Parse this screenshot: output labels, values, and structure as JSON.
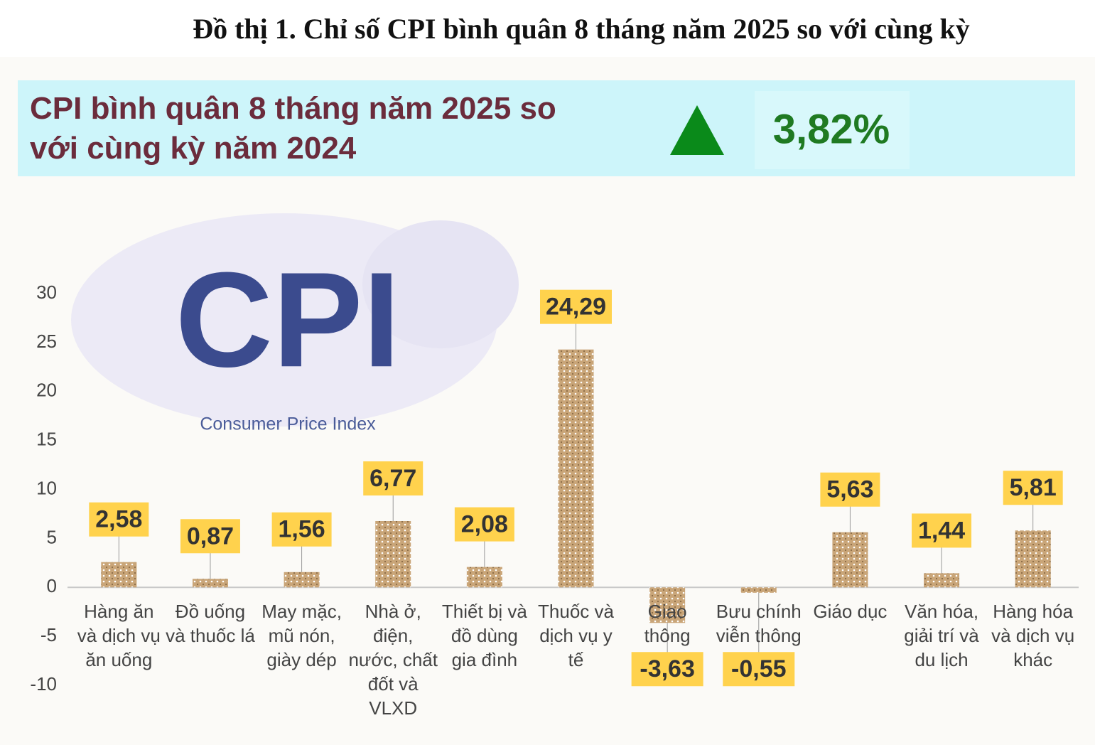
{
  "chart_data": {
    "type": "bar",
    "title": "Đồ thị 1. Chỉ số CPI bình quân 8 tháng năm 2025 so với cùng kỳ",
    "summary": {
      "label": "CPI bình quân 8 tháng năm 2025 so với cùng kỳ năm 2024",
      "value": 3.82,
      "value_label": "3,82%"
    },
    "illustration": {
      "text": "CPI",
      "caption": "Consumer Price Index"
    },
    "categories": [
      "Hàng ăn và dịch vụ ăn uống",
      "Đồ uống và thuốc lá",
      "May mặc, mũ nón, giày dép",
      "Nhà ở, điện, nước, chất đốt và VLXD",
      "Thiết bị và đồ dùng gia đình",
      "Thuốc và dịch vụ y tế",
      "Giao thông",
      "Bưu chính viễn thông",
      "Giáo dục",
      "Văn hóa, giải trí và du lịch",
      "Hàng hóa và dịch vụ khác"
    ],
    "values": [
      2.58,
      0.87,
      1.56,
      6.77,
      2.08,
      24.29,
      -3.63,
      -0.55,
      5.63,
      1.44,
      5.81
    ],
    "value_labels": [
      "2,58",
      "0,87",
      "1,56",
      "6,77",
      "2,08",
      "24,29",
      "-3,63",
      "-0,55",
      "5,63",
      "1,44",
      "5,81"
    ],
    "color": "#c9a578",
    "label_color": "#ffd24d",
    "ylim": [
      -10,
      30
    ],
    "yticks": [
      -10,
      -5,
      0,
      5,
      10,
      15,
      20,
      25,
      30
    ],
    "grid": false
  }
}
